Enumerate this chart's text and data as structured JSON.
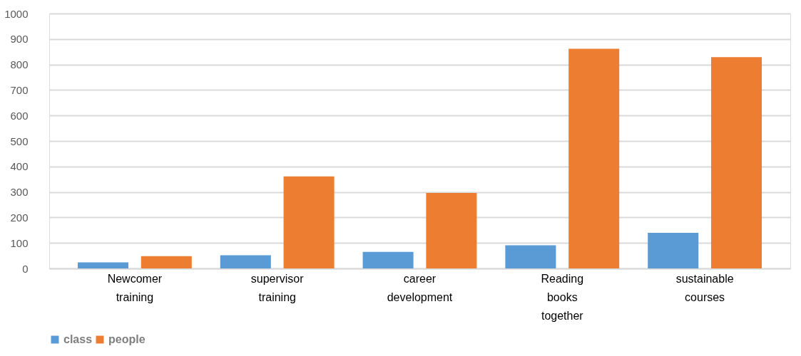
{
  "chart_data": {
    "type": "bar",
    "categories": [
      "Newcomer training",
      "supervisor training",
      "career development",
      "Reading books together",
      "sustainable courses"
    ],
    "series": [
      {
        "name": "class",
        "color": "#5b9bd5",
        "values": [
          24,
          52,
          65,
          91,
          140
        ]
      },
      {
        "name": "people",
        "color": "#ed7d31",
        "values": [
          48,
          361,
          296,
          862,
          829
        ]
      }
    ],
    "ylim": [
      0,
      1000
    ],
    "yticks": [
      0,
      100,
      200,
      300,
      400,
      500,
      600,
      700,
      800,
      900,
      1000
    ],
    "grid": "y",
    "legend": "bottom"
  }
}
